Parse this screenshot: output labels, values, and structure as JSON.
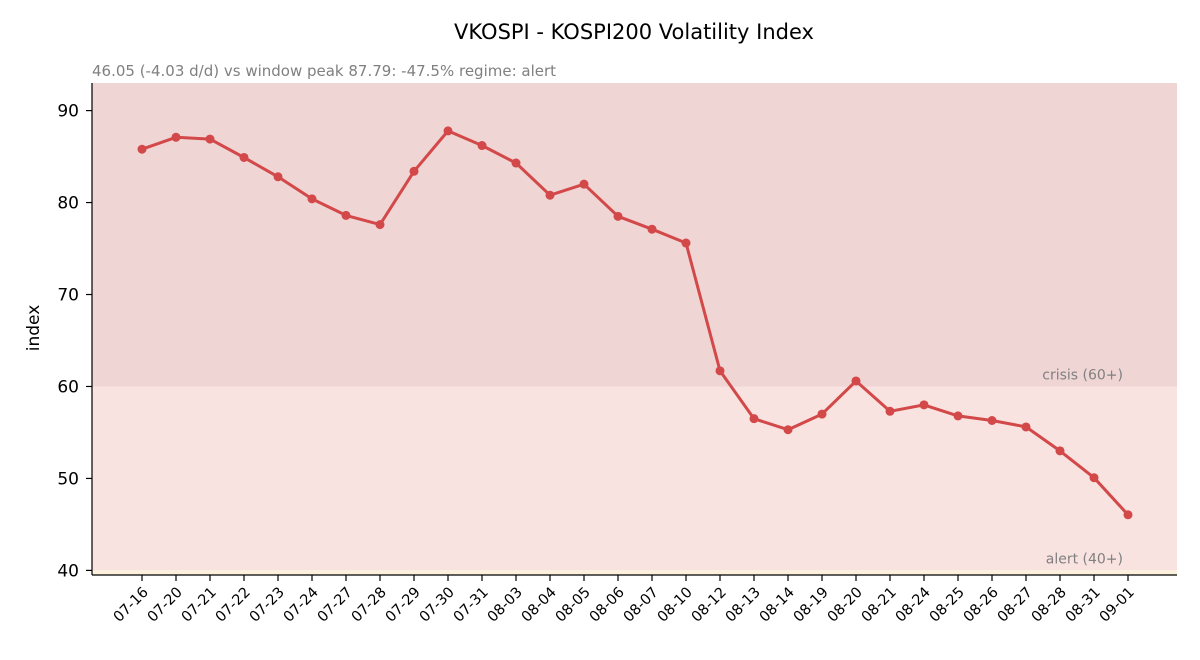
{
  "chart_data": {
    "type": "line",
    "title": "VKOSPI - KOSPI200 Volatility Index",
    "subtitle": "46.05  (-4.03 d/d)   vs window peak 87.79: -47.5%   regime: alert",
    "ylabel": "index",
    "xlabel": "",
    "ylim": [
      39.5,
      93
    ],
    "yticks": [
      40,
      50,
      60,
      70,
      80,
      90
    ],
    "grid": false,
    "categories": [
      "07-16",
      "07-20",
      "07-21",
      "07-22",
      "07-23",
      "07-24",
      "07-27",
      "07-28",
      "07-29",
      "07-30",
      "07-31",
      "08-03",
      "08-04",
      "08-05",
      "08-06",
      "08-07",
      "08-10",
      "08-12",
      "08-13",
      "08-14",
      "08-19",
      "08-20",
      "08-21",
      "08-24",
      "08-25",
      "08-26",
      "08-27",
      "08-28",
      "08-31",
      "09-01"
    ],
    "series": [
      {
        "values": [
          85.8,
          87.1,
          86.9,
          84.9,
          82.8,
          80.4,
          78.6,
          77.6,
          83.4,
          87.79,
          86.2,
          84.3,
          80.8,
          82.0,
          78.5,
          77.1,
          75.6,
          61.7,
          56.5,
          55.3,
          57.0,
          60.6,
          57.3,
          58.0,
          56.8,
          56.3,
          55.6,
          53.0,
          50.08,
          46.05
        ],
        "color": "#d34848"
      }
    ],
    "bands": [
      {
        "label": "crisis (60+)",
        "from": 60,
        "to": 93,
        "color": "#f0d5d5"
      },
      {
        "label": "alert (40+)",
        "from": 40,
        "to": 60,
        "color": "#f9e3e1"
      },
      {
        "label": "",
        "from": 39.5,
        "to": 40,
        "color": "#fbf1dc"
      }
    ]
  }
}
